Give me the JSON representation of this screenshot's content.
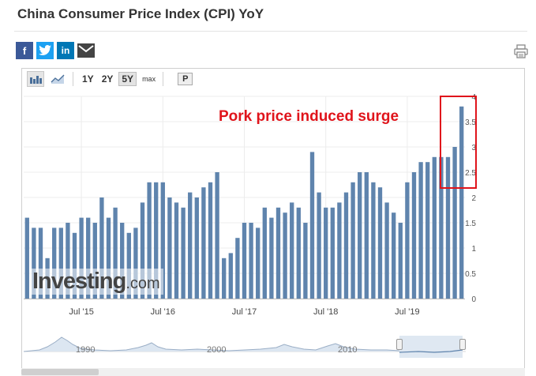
{
  "header": {
    "title": "China Consumer Price Index (CPI) YoY"
  },
  "share": {
    "facebook_icon": "facebook-icon",
    "twitter_icon": "twitter-icon",
    "linkedin_icon": "linkedin-icon",
    "email_icon": "email-icon",
    "facebook_glyph": "f",
    "linkedin_glyph": "in",
    "print_icon": "print-icon"
  },
  "toolbar": {
    "bar_chart_icon": "bar-chart-icon",
    "line_chart_icon": "line-chart-icon",
    "ranges": [
      "1Y",
      "2Y",
      "5Y",
      "max"
    ],
    "active_range": "5Y",
    "p_label": "P"
  },
  "annotation": {
    "text": "Pork price induced surge",
    "color": "#e0141b"
  },
  "watermark": {
    "main": "Investing",
    "suffix": ".com"
  },
  "navigator": {
    "labels": [
      "1990",
      "2000",
      "2010"
    ]
  },
  "colors": {
    "bar": "#5f84ad",
    "navigator_fill": "#dce6f1",
    "navigator_line": "#9aaec6"
  },
  "chart_data": {
    "type": "bar",
    "title": "China Consumer Price Index (CPI) YoY",
    "xlabel": "",
    "ylabel": "",
    "ylim": [
      0,
      4
    ],
    "yticks": [
      0,
      0.5,
      1,
      1.5,
      2,
      2.5,
      3,
      3.5,
      4
    ],
    "ytick_labels": [
      "0",
      "0.5",
      "1",
      "1.5",
      "2",
      "2.5",
      "3",
      "3.5",
      "4"
    ],
    "y_axis_position": "right",
    "grid": true,
    "xtick_labels": [
      {
        "label": "Jul '15",
        "index": 8
      },
      {
        "label": "Jul '16",
        "index": 20
      },
      {
        "label": "Jul '17",
        "index": 32
      },
      {
        "label": "Jul '18",
        "index": 44
      },
      {
        "label": "Jul '19",
        "index": 56
      }
    ],
    "series": [
      {
        "values": [
          1.6,
          1.4,
          1.4,
          0.8,
          1.4,
          1.4,
          1.5,
          1.3,
          1.6,
          1.6,
          1.5,
          2.0,
          1.6,
          1.8,
          1.5,
          1.3,
          1.4,
          1.9,
          2.3,
          2.3,
          2.3,
          2.0,
          1.9,
          1.8,
          2.1,
          2.0,
          2.2,
          2.3,
          2.5,
          0.8,
          0.9,
          1.2,
          1.5,
          1.5,
          1.4,
          1.8,
          1.6,
          1.8,
          1.7,
          1.9,
          1.8,
          1.5,
          2.9,
          2.1,
          1.8,
          1.8,
          1.9,
          2.1,
          2.3,
          2.5,
          2.5,
          2.3,
          2.2,
          1.9,
          1.7,
          1.5,
          2.3,
          2.5,
          2.7,
          2.7,
          2.8,
          2.8,
          2.8,
          3.0,
          3.8
        ]
      }
    ]
  }
}
